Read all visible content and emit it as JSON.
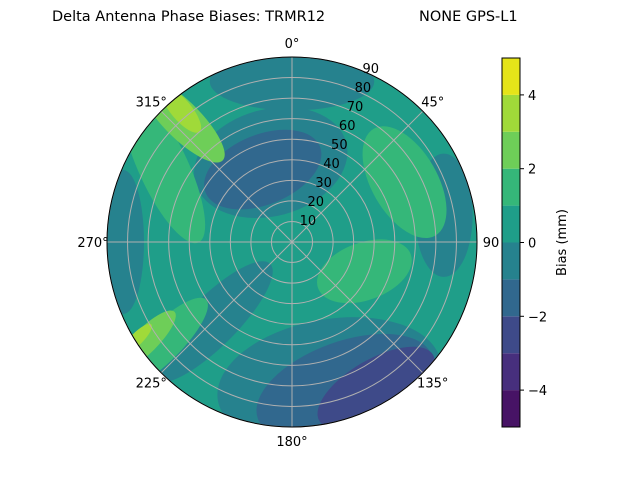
{
  "title_left": "Delta Antenna Phase Biases: TRMR12",
  "title_right": "NONE GPS-L1",
  "chart_data": {
    "type": "contour-polar",
    "theta_zero": "north",
    "theta_direction": "clockwise",
    "angular_ticks": [
      "0°",
      "45°",
      "90",
      "135°",
      "180°",
      "225°",
      "270°",
      "315°"
    ],
    "radial_ticks": [
      "10",
      "20",
      "30",
      "40",
      "50",
      "60",
      "70",
      "80",
      "90"
    ],
    "radial_range": [
      0,
      90
    ],
    "grid": true,
    "colorbar": {
      "label": "Bias (mm)",
      "range": [
        -5,
        5
      ],
      "ticks": [
        "−4",
        "−2",
        "0",
        "2",
        "4"
      ],
      "tick_values": [
        -4,
        -2,
        0,
        2,
        4
      ],
      "levels": [
        -5,
        -4,
        -3,
        -2,
        -1,
        0,
        1,
        2,
        3,
        4,
        5
      ],
      "colors": [
        "#471365",
        "#472f7d",
        "#3e4a89",
        "#31688e",
        "#26828e",
        "#1f9e89",
        "#35b779",
        "#6ece58",
        "#a0da39",
        "#e5e419"
      ],
      "colormap": "viridis"
    },
    "background_level": [
      0,
      1
    ],
    "regions": [
      {
        "level": [
          -1,
          0
        ],
        "az": 345,
        "zen": 40,
        "a": 38,
        "b": 26,
        "rot": -15
      },
      {
        "level": [
          -1,
          0
        ],
        "az": 0,
        "zen": 78,
        "a": 14,
        "b": 40,
        "rot": 90
      },
      {
        "level": [
          -1,
          0
        ],
        "az": 270,
        "zen": 82,
        "a": 10,
        "b": 35,
        "rot": 0
      },
      {
        "level": [
          -1,
          0
        ],
        "az": 80,
        "zen": 75,
        "a": 14,
        "b": 30,
        "rot": 0
      },
      {
        "level": [
          -1,
          0
        ],
        "az": 165,
        "zen": 70,
        "a": 30,
        "b": 55,
        "rot": 80
      },
      {
        "level": [
          -1,
          0
        ],
        "az": 225,
        "zen": 55,
        "a": 12,
        "b": 40,
        "rot": 45
      },
      {
        "level": [
          -2,
          -1
        ],
        "az": 338,
        "zen": 38,
        "a": 30,
        "b": 17,
        "rot": -22
      },
      {
        "level": [
          -2,
          -1
        ],
        "az": 160,
        "zen": 75,
        "a": 22,
        "b": 45,
        "rot": 70
      },
      {
        "level": [
          -3,
          -2
        ],
        "az": 150,
        "zen": 82,
        "a": 14,
        "b": 32,
        "rot": 60
      },
      {
        "level": [
          1,
          2
        ],
        "az": 62,
        "zen": 62,
        "a": 30,
        "b": 16,
        "rot": 60
      },
      {
        "level": [
          1,
          2
        ],
        "az": 112,
        "zen": 38,
        "a": 24,
        "b": 14,
        "rot": -20
      },
      {
        "level": [
          1,
          2
        ],
        "az": 300,
        "zen": 72,
        "a": 40,
        "b": 12,
        "rot": 65
      },
      {
        "level": [
          1,
          2
        ],
        "az": 232,
        "zen": 80,
        "a": 30,
        "b": 9,
        "rot": -45
      },
      {
        "level": [
          2,
          3
        ],
        "az": 318,
        "zen": 80,
        "a": 28,
        "b": 9,
        "rot": 45
      },
      {
        "level": [
          2,
          3
        ],
        "az": 236,
        "zen": 86,
        "a": 20,
        "b": 6,
        "rot": -45
      },
      {
        "level": [
          3,
          4
        ],
        "az": 320,
        "zen": 84,
        "a": 14,
        "b": 5,
        "rot": 50
      },
      {
        "level": [
          3,
          4
        ],
        "az": 238,
        "zen": 89,
        "a": 10,
        "b": 3,
        "rot": -45
      }
    ]
  }
}
